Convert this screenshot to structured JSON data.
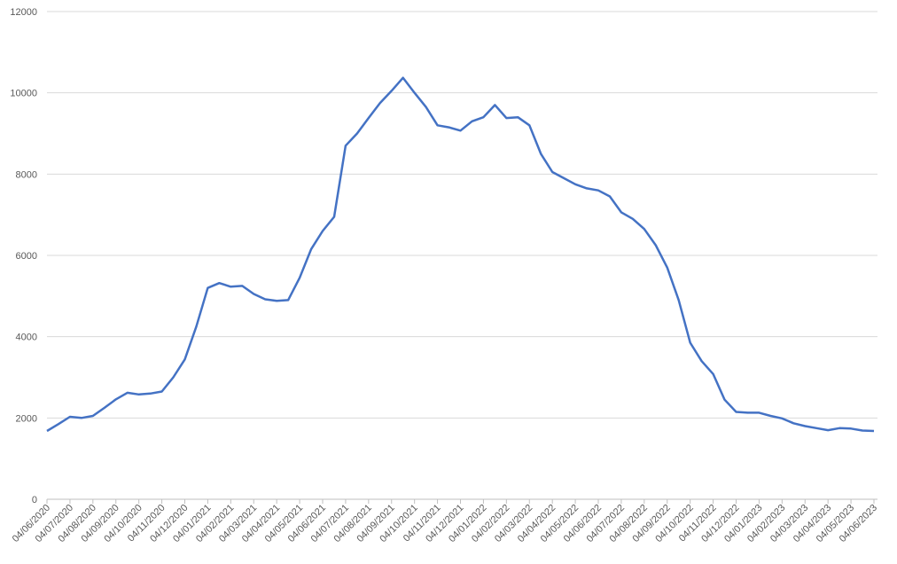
{
  "chart_data": {
    "type": "line",
    "categories": [
      "04/06/2020",
      null,
      "04/07/2020",
      null,
      "04/08/2020",
      null,
      "04/09/2020",
      null,
      "04/10/2020",
      null,
      "04/11/2020",
      null,
      "04/12/2020",
      null,
      "04/01/2021",
      null,
      "04/02/2021",
      null,
      "04/03/2021",
      null,
      "04/04/2021",
      null,
      "04/05/2021",
      null,
      "04/06/2021",
      null,
      "04/07/2021",
      null,
      "04/08/2021",
      null,
      "04/09/2021",
      null,
      "04/10/2021",
      null,
      "04/11/2021",
      null,
      "04/12/2021",
      null,
      "04/01/2022",
      null,
      "04/02/2022",
      null,
      "04/03/2022",
      null,
      "04/04/2022",
      null,
      "04/05/2022",
      null,
      "04/06/2022",
      null,
      "04/07/2022",
      null,
      "04/08/2022",
      null,
      "04/09/2022",
      null,
      "04/10/2022",
      null,
      "04/11/2022",
      null,
      "04/12/2022",
      null,
      "04/01/2023",
      null,
      "04/02/2023",
      null,
      "04/03/2023",
      null,
      "04/04/2023",
      null,
      "04/05/2023",
      null,
      "04/06/2023"
    ],
    "series": [
      {
        "color": "#4472c4",
        "values": [
          1680,
          1850,
          2030,
          2000,
          2050,
          2250,
          2460,
          2620,
          2580,
          2600,
          2650,
          3000,
          3440,
          4250,
          5200,
          5320,
          5230,
          5250,
          5050,
          4920,
          4880,
          4900,
          5450,
          6150,
          6600,
          6950,
          8700,
          9000,
          9380,
          9750,
          10050,
          10370,
          10000,
          9650,
          9200,
          9150,
          9070,
          9300,
          9400,
          9700,
          9380,
          9400,
          9200,
          8500,
          8050,
          7900,
          7750,
          7650,
          7600,
          7450,
          7060,
          6900,
          6650,
          6250,
          5700,
          4900,
          3850,
          3400,
          3080,
          2450,
          2150,
          2130,
          2130,
          2050,
          1990,
          1870,
          1800,
          1750,
          1700,
          1750,
          1740,
          1690,
          1680
        ]
      }
    ],
    "ylim": [
      0,
      12000
    ],
    "yticks": [
      0,
      2000,
      4000,
      6000,
      8000,
      10000,
      12000
    ],
    "grid": true
  }
}
